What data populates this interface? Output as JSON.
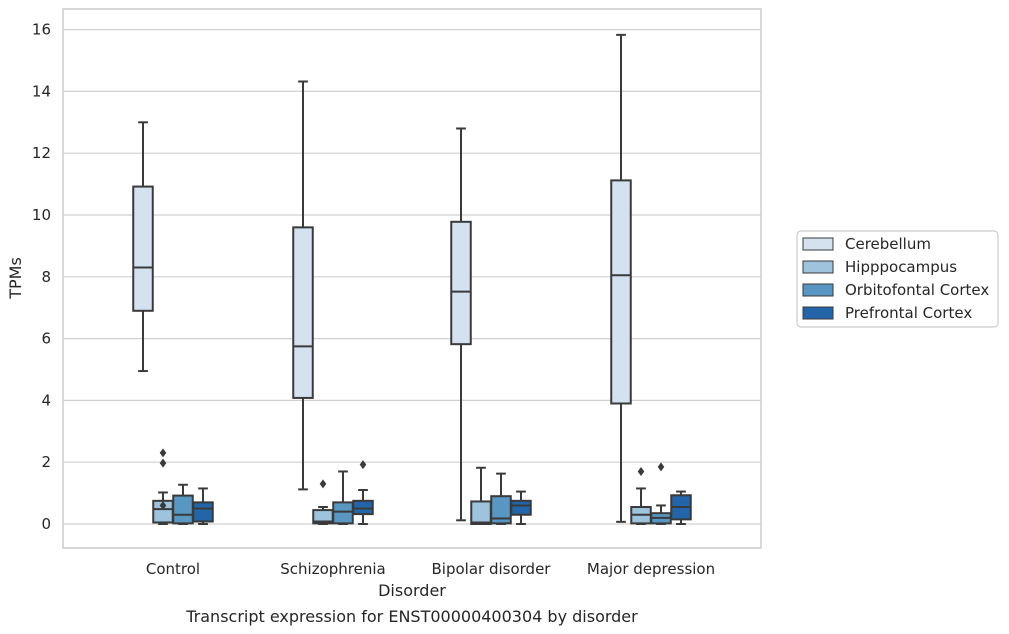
{
  "caption": "Transcript expression for ENST00000400304 by disorder",
  "chart_data": {
    "type": "boxplot",
    "title": "",
    "xlabel": "Disorder",
    "ylabel": "TPMs",
    "ylim": [
      -0.75,
      16.6
    ],
    "yticks": [
      0,
      2,
      4,
      6,
      8,
      10,
      12,
      14,
      16
    ],
    "grid": "horizontal",
    "legend_position": "right",
    "categories": [
      "Control",
      "Schizophrenia",
      "Bipolar disorder",
      "Major depression"
    ],
    "series": [
      {
        "name": "Cerebellum",
        "color": "#d4e2f0",
        "boxes": [
          {
            "whisker_low": 4.95,
            "q1": 6.9,
            "median": 8.3,
            "q3": 10.92,
            "whisker_high": 13.0,
            "outliers": []
          },
          {
            "whisker_low": 1.12,
            "q1": 4.08,
            "median": 5.75,
            "q3": 9.6,
            "whisker_high": 14.32,
            "outliers": []
          },
          {
            "whisker_low": 0.12,
            "q1": 5.82,
            "median": 7.52,
            "q3": 9.78,
            "whisker_high": 12.8,
            "outliers": []
          },
          {
            "whisker_low": 0.07,
            "q1": 3.9,
            "median": 8.05,
            "q3": 11.12,
            "whisker_high": 15.83,
            "outliers": []
          }
        ]
      },
      {
        "name": "Hipppocampus",
        "color": "#9dc3dd",
        "boxes": [
          {
            "whisker_low": 0.0,
            "q1": 0.05,
            "median": 0.48,
            "q3": 0.75,
            "whisker_high": 1.02,
            "outliers": [
              0.6,
              1.97,
              2.3
            ]
          },
          {
            "whisker_low": 0.0,
            "q1": 0.02,
            "median": 0.08,
            "q3": 0.45,
            "whisker_high": 0.55,
            "outliers": [
              1.3
            ]
          },
          {
            "whisker_low": 0.0,
            "q1": 0.0,
            "median": 0.05,
            "q3": 0.73,
            "whisker_high": 1.82,
            "outliers": []
          },
          {
            "whisker_low": 0.0,
            "q1": 0.02,
            "median": 0.3,
            "q3": 0.55,
            "whisker_high": 1.15,
            "outliers": [
              1.7
            ]
          }
        ]
      },
      {
        "name": "Orbitofontal Cortex",
        "color": "#5897c4",
        "boxes": [
          {
            "whisker_low": 0.0,
            "q1": 0.02,
            "median": 0.3,
            "q3": 0.92,
            "whisker_high": 1.27,
            "outliers": []
          },
          {
            "whisker_low": 0.0,
            "q1": 0.02,
            "median": 0.4,
            "q3": 0.7,
            "whisker_high": 1.7,
            "outliers": []
          },
          {
            "whisker_low": 0.0,
            "q1": 0.02,
            "median": 0.18,
            "q3": 0.9,
            "whisker_high": 1.63,
            "outliers": []
          },
          {
            "whisker_low": 0.0,
            "q1": 0.02,
            "median": 0.2,
            "q3": 0.35,
            "whisker_high": 0.6,
            "outliers": [
              1.85
            ]
          }
        ]
      },
      {
        "name": "Prefrontal Cortex",
        "color": "#2265a8",
        "boxes": [
          {
            "whisker_low": 0.0,
            "q1": 0.08,
            "median": 0.5,
            "q3": 0.7,
            "whisker_high": 1.15,
            "outliers": []
          },
          {
            "whisker_low": 0.0,
            "q1": 0.32,
            "median": 0.5,
            "q3": 0.75,
            "whisker_high": 1.1,
            "outliers": [
              1.92
            ]
          },
          {
            "whisker_low": 0.0,
            "q1": 0.3,
            "median": 0.6,
            "q3": 0.75,
            "whisker_high": 1.05,
            "outliers": []
          },
          {
            "whisker_low": 0.0,
            "q1": 0.15,
            "median": 0.55,
            "q3": 0.93,
            "whisker_high": 1.05,
            "outliers": []
          }
        ]
      }
    ]
  }
}
